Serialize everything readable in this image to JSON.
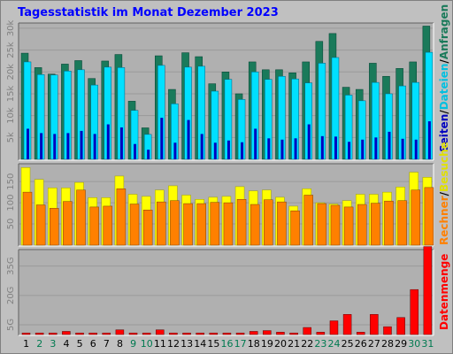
{
  "title": "Tagesstatistik im Monat Dezember 2023",
  "colors": {
    "background": "#c0c0c0",
    "plot_background": "#b0b0b0",
    "grid": "#9a9a9a",
    "anfragen": "#1a7a5a",
    "dateien": "#00e0ff",
    "seiten": "#0000c0",
    "besuche": "#ffff00",
    "rechner": "#ff8000",
    "datenmenge": "#ff0000",
    "day_weekday": "#000000",
    "day_weekend": "#007a50",
    "title": "#0000ff"
  },
  "legend": {
    "anfragen": "Anfragen",
    "dateien": "Dateien",
    "seiten": "Seiten",
    "besuche": "Besuche",
    "rechner": "Rechner",
    "datenmenge": "Datenmenge",
    "separator": "/"
  },
  "chart_data": [
    {
      "type": "bar",
      "panel": "Anfragen / Dateien / Seiten",
      "x": [
        1,
        2,
        3,
        4,
        5,
        6,
        7,
        8,
        9,
        10,
        11,
        12,
        13,
        14,
        15,
        16,
        17,
        18,
        19,
        20,
        21,
        22,
        23,
        24,
        25,
        26,
        27,
        28,
        29,
        30,
        31
      ],
      "ylim": [
        0,
        31000
      ],
      "y_ticks": [
        "5k",
        "10k",
        "15k",
        "20k",
        "25k",
        "30k"
      ],
      "series": [
        {
          "name": "Anfragen",
          "values": [
            24300,
            21000,
            19500,
            21800,
            22600,
            18500,
            22500,
            24000,
            13300,
            7200,
            23700,
            16000,
            24400,
            23500,
            17300,
            20000,
            15000,
            22300,
            20500,
            20500,
            19800,
            22300,
            27000,
            28800,
            16500,
            16000,
            22000,
            19000,
            20800,
            22300,
            30500
          ]
        },
        {
          "name": "Dateien",
          "values": [
            22300,
            19400,
            19300,
            20200,
            20500,
            17000,
            21100,
            21000,
            11200,
            5700,
            21500,
            12700,
            21100,
            21300,
            15600,
            18300,
            13700,
            20000,
            18300,
            19000,
            18400,
            17500,
            22000,
            23300,
            14700,
            13400,
            17600,
            15000,
            16800,
            17600,
            24500
          ]
        },
        {
          "name": "Seiten",
          "values": [
            7000,
            6000,
            5800,
            6000,
            6500,
            5800,
            8000,
            7300,
            3500,
            2200,
            9500,
            3800,
            9000,
            5800,
            3800,
            4300,
            3900,
            7000,
            4800,
            4500,
            4800,
            8000,
            5300,
            5200,
            4000,
            4500,
            5000,
            6300,
            4700,
            4500,
            8700
          ]
        }
      ]
    },
    {
      "type": "bar",
      "panel": "Besuche / Rechner",
      "x": [
        1,
        2,
        3,
        4,
        5,
        6,
        7,
        8,
        9,
        10,
        11,
        12,
        13,
        14,
        15,
        16,
        17,
        18,
        19,
        20,
        21,
        22,
        23,
        24,
        25,
        26,
        27,
        28,
        29,
        30,
        31
      ],
      "ylim": [
        0,
        190
      ],
      "y_ticks": [
        "50",
        "100",
        "150"
      ],
      "series": [
        {
          "name": "Besuche",
          "values": [
            183,
            155,
            135,
            135,
            148,
            112,
            112,
            163,
            120,
            115,
            130,
            140,
            118,
            108,
            113,
            115,
            138,
            128,
            130,
            113,
            92,
            133,
            100,
            97,
            105,
            120,
            120,
            125,
            137,
            172,
            160
          ]
        },
        {
          "name": "Rechner",
          "values": [
            125,
            95,
            87,
            103,
            130,
            90,
            92,
            133,
            97,
            83,
            102,
            105,
            98,
            98,
            101,
            100,
            108,
            96,
            107,
            102,
            81,
            118,
            98,
            94,
            90,
            96,
            99,
            104,
            105,
            130,
            136
          ]
        }
      ]
    },
    {
      "type": "bar",
      "panel": "Datenmenge",
      "x": [
        1,
        2,
        3,
        4,
        5,
        6,
        7,
        8,
        9,
        10,
        11,
        12,
        13,
        14,
        15,
        16,
        17,
        18,
        19,
        20,
        21,
        22,
        23,
        24,
        25,
        26,
        27,
        28,
        29,
        30,
        31
      ],
      "ylim": [
        0,
        43
      ],
      "y_ticks": [
        "5G",
        "20G",
        "35G"
      ],
      "series": [
        {
          "name": "Datenmenge",
          "values": [
            0.8,
            0.8,
            0.8,
            1.6,
            0.8,
            0.8,
            0.8,
            2.4,
            0.8,
            0.8,
            2.4,
            0.8,
            0.8,
            0.8,
            0.8,
            0.8,
            0.8,
            1.6,
            2.0,
            1.2,
            0.8,
            3.6,
            1.2,
            7.0,
            10.3,
            1.2,
            10.3,
            4.0,
            8.7,
            23.0,
            45.0
          ]
        }
      ]
    }
  ]
}
